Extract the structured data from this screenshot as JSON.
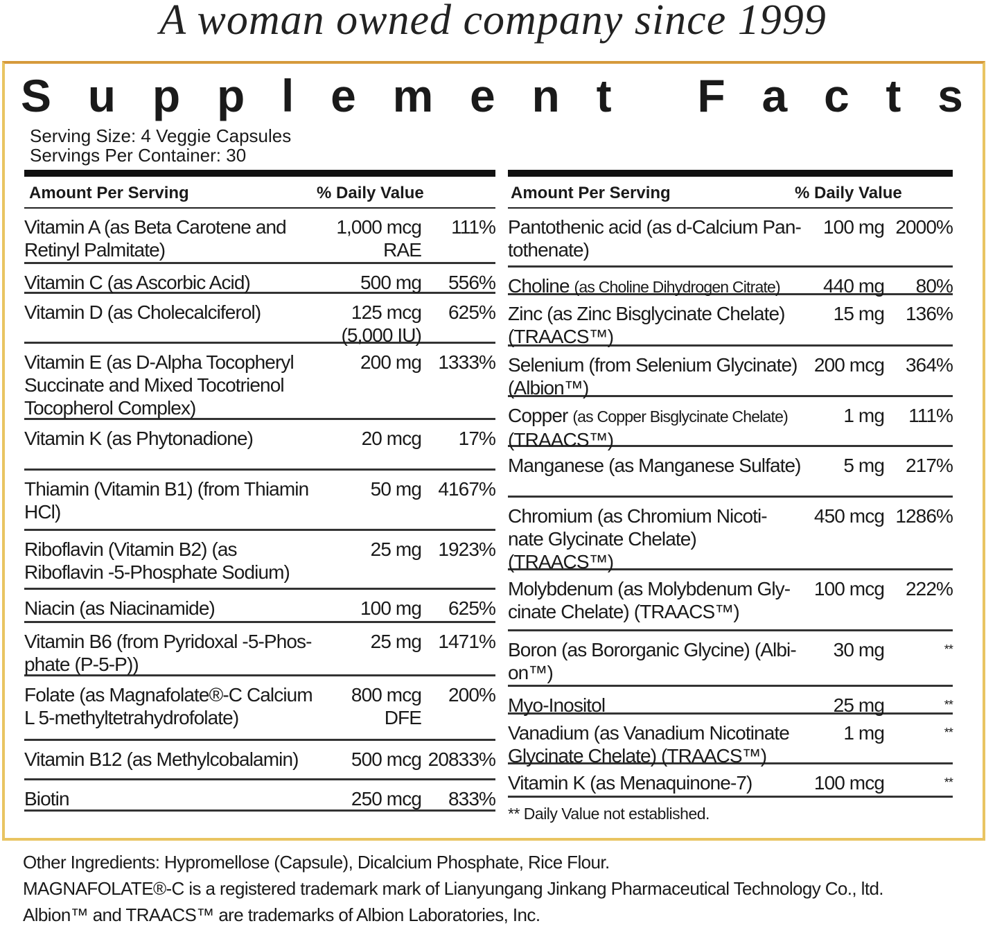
{
  "tagline": "A woman owned company since 1999",
  "title": "Supplement Facts",
  "serving_size": "Serving Size: 4 Veggie Capsules",
  "servings_per_container": "Servings Per Container: 30",
  "colors": {
    "frame_gold": "#e9c462",
    "frame_orange": "#d69a3c"
  },
  "header": {
    "amount": "Amount Per Serving",
    "dv": "% Daily Value"
  },
  "left": [
    {
      "name": "Vitamin A (as Beta Carotene and Retinyl Palmitate)",
      "amount": "1,000 mcg RAE",
      "dv": "111%"
    },
    {
      "name": "Vitamin C (as Ascorbic Acid)",
      "amount": "500 mg",
      "dv": "556%"
    },
    {
      "name": "Vitamin D (as Cholecalciferol)",
      "amount": "125 mcg (5,000 IU)",
      "dv": "625%"
    },
    {
      "name": "Vitamin E (as D-Alpha Tocopheryl Succinate and Mixed Tocotrienol Tocopherol Complex)",
      "amount": "200 mg",
      "dv": "1333%"
    },
    {
      "name": "Vitamin K (as Phytonadione)",
      "amount": "20 mcg",
      "dv": "17%"
    },
    {
      "name": "Thiamin (Vitamin B1) (from Thiamin HCl)",
      "amount": "50 mg",
      "dv": "4167%"
    },
    {
      "name": "Riboflavin (Vitamin B2) (as Riboflavin -5-Phosphate Sodium)",
      "amount": "25 mg",
      "dv": "1923%"
    },
    {
      "name": "Niacin (as Niacinamide)",
      "amount": "100 mg",
      "dv": "625%"
    },
    {
      "name": "Vitamin B6 (from Pyridoxal -5-Phos-phate (P-5-P))",
      "amount": "25 mg",
      "dv": "1471%"
    },
    {
      "name": "Folate (as Magnafolate®-C Calcium L 5-methyltetrahydrofolate)",
      "amount": "800 mcg DFE",
      "dv": "200%"
    },
    {
      "name": "Vitamin B12 (as Methylcobalamin)",
      "amount": "500 mcg",
      "dv": "20833%"
    },
    {
      "name": "Biotin",
      "amount": "250 mcg",
      "dv": "833%"
    }
  ],
  "right": [
    {
      "name": "Pantothenic acid (as d-Calcium Pan-tothenate)",
      "amount": "100 mg",
      "dv": "2000%"
    },
    {
      "name": "Choline",
      "small": "(as Choline Dihydrogen Citrate)",
      "amount": "440 mg",
      "dv": "80%"
    },
    {
      "name": "Zinc (as Zinc Bisglycinate Chelate) (TRAACS™)",
      "amount": "15 mg",
      "dv": "136%"
    },
    {
      "name": "Selenium (from Selenium Glycinate) (Albion™)",
      "amount": "200 mcg",
      "dv": "364%"
    },
    {
      "name": "Copper",
      "small": "(as Copper Bisglycinate Chelate)",
      "name2": " (TRAACS™)",
      "amount": "1 mg",
      "dv": "111%"
    },
    {
      "name": "Manganese (as Manganese Sulfate)",
      "amount": "5 mg",
      "dv": "217%"
    },
    {
      "name": "Chromium (as Chromium Nicoti-nate Glycinate Chelate) (TRAACS™)",
      "amount": "450 mcg",
      "dv": "1286%"
    },
    {
      "name": "Molybdenum (as Molybdenum Gly-cinate Chelate) (TRAACS™)",
      "amount": "100 mcg",
      "dv": "222%"
    },
    {
      "name": "Boron (as Bororganic Glycine) (Albi-on™)",
      "amount": "30 mg",
      "dv": "**"
    },
    {
      "name": "Myo-Inositol",
      "amount": "25 mg",
      "dv": "**"
    },
    {
      "name": "Vanadium (as Vanadium Nicotinate Glycinate Chelate) (TRAACS™)",
      "amount": "1 mg",
      "dv": "**"
    },
    {
      "name": "Vitamin K (as Menaquinone-7)",
      "amount": "100 mcg",
      "dv": "**"
    }
  ],
  "footnote": "** Daily Value not established.",
  "other_ingredients": "Other Ingredients: Hypromellose (Capsule), Dicalcium Phosphate, Rice Flour.",
  "trademark1": "MAGNAFOLATE®-C is a registered trademark mark of Lianyungang Jinkang Pharmaceutical Technology Co., ltd.",
  "trademark2": "Albion™ and TRAACS™ are trademarks of Albion Laboratories, Inc."
}
